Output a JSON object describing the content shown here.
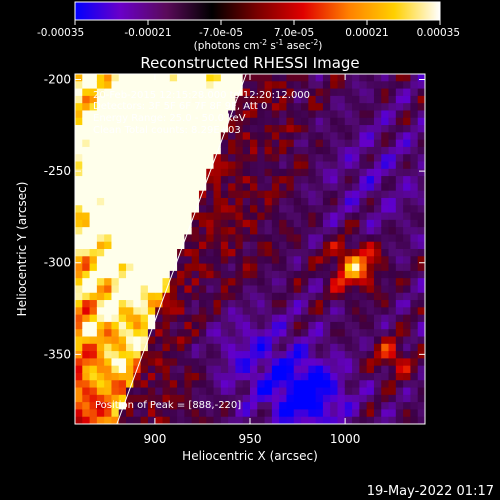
{
  "chart_data": {
    "type": "heatmap",
    "title": "Reconstructed RHESSI Image",
    "xlabel": "Heliocentric X (arcsec)",
    "ylabel": "Heliocentric Y (arcsec)",
    "xlim": [
      858,
      1042
    ],
    "ylim": [
      -388,
      -197
    ],
    "x_ticks": [
      900,
      950,
      1000
    ],
    "y_ticks": [
      -200,
      -250,
      -300,
      -350
    ],
    "colorbar": {
      "ticks": [
        "-0.00035",
        "-0.00021",
        "-7.0e-05",
        "7.0e-05",
        "0.00021",
        "0.00035"
      ],
      "units": "(photons cm",
      "units_parts": [
        "(photons cm",
        "-2",
        " s",
        "-1",
        " asec",
        "-2",
        ")"
      ],
      "range": [
        -0.00035,
        0.00035
      ],
      "colormap": [
        "#0000ff",
        "#6a00c8",
        "#5a0a5a",
        "#000000",
        "#7a0000",
        "#e00000",
        "#ff8000",
        "#ffd000",
        "#ffffff"
      ]
    },
    "annotations": [
      "20-Feb-2015 12:15:28.000 to 12:20:12.000",
      "Detectors: 3F 5F 6F 7F 8F 9F, Att 0",
      "Energy Range: 25.0 - 50.0 keV",
      "Clean      Total counts: 8.29E+03"
    ],
    "peak_text": "Position of Peak = [888,-220]",
    "peak_position": [
      888,
      -220
    ],
    "limb_line": [
      [
        880,
        -388
      ],
      [
        948,
        -197
      ]
    ]
  },
  "footer_timestamp": "19-May-2022 01:17"
}
